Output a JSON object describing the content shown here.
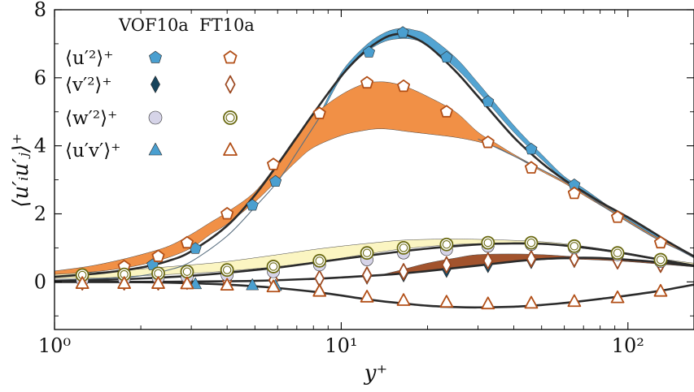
{
  "chart_data": {
    "type": "line",
    "xscale": "log",
    "xlim": [
      1,
      170
    ],
    "ylim": [
      -1.4,
      8
    ],
    "xlabel": "y⁺",
    "ylabel": "⟨u′ᵢu′ⱼ⟩⁺",
    "x_ticks": [
      {
        "value": 1,
        "label": "10⁰"
      },
      {
        "value": 10,
        "label": "10¹"
      },
      {
        "value": 100,
        "label": "10²"
      }
    ],
    "y_ticks": [
      {
        "value": 0,
        "label": "0"
      },
      {
        "value": 2,
        "label": "2"
      },
      {
        "value": 4,
        "label": "4"
      },
      {
        "value": 6,
        "label": "6"
      },
      {
        "value": 8,
        "label": "8"
      }
    ],
    "legend": {
      "placement": "top-left",
      "headers": [
        "VOF10a",
        "FT10a"
      ],
      "rows": [
        {
          "label": "⟨u′²⟩⁺",
          "vof_marker": "pentagon",
          "ft_marker": "pentagon"
        },
        {
          "label": "⟨v′²⟩⁺",
          "vof_marker": "diamond",
          "ft_marker": "diamond"
        },
        {
          "label": "⟨w′²⟩⁺",
          "vof_marker": "circle",
          "ft_marker": "circle"
        },
        {
          "label": "⟨u′v′⟩⁺",
          "vof_marker": "triangle",
          "ft_marker": "triangle"
        }
      ]
    },
    "colors": {
      "uu_vof": "#4a9fd0",
      "uu_ft": "#f08a3c",
      "uu_ft_marker": "#b24f17",
      "vv_vof": "#17445c",
      "vv_ft": "#9d4a22",
      "ww_vof": "#d6d4e8",
      "ww_ft": "#fbf4bf",
      "ww_ft_marker": "#6b6a12",
      "uv_vof": "#4a9fd0",
      "uv_ft": "#b24f17",
      "reference": "#2b2b2b",
      "thin_line": "#5a6f80"
    },
    "reference_curves": [
      {
        "id": "uu",
        "x": [
          1,
          1.3,
          1.6,
          2,
          2.5,
          3,
          4,
          5,
          6,
          7,
          8,
          10,
          12,
          14,
          15.5,
          17,
          20,
          25,
          30,
          40,
          50,
          60,
          70,
          80,
          100,
          120,
          140,
          170
        ],
        "y": [
          0.15,
          0.22,
          0.3,
          0.42,
          0.62,
          0.9,
          1.65,
          2.55,
          3.45,
          4.25,
          4.95,
          6.05,
          6.75,
          7.15,
          7.28,
          7.25,
          6.95,
          6.2,
          5.45,
          4.25,
          3.5,
          3.0,
          2.65,
          2.35,
          1.9,
          1.5,
          1.15,
          0.75
        ]
      },
      {
        "id": "vv",
        "x": [
          1,
          2,
          3,
          5,
          8,
          10,
          15,
          20,
          30,
          40,
          50,
          60,
          70,
          80,
          100,
          120,
          150,
          170
        ],
        "y": [
          0.0,
          0.0,
          0.01,
          0.03,
          0.09,
          0.13,
          0.22,
          0.32,
          0.48,
          0.6,
          0.67,
          0.7,
          0.71,
          0.7,
          0.65,
          0.6,
          0.52,
          0.47
        ]
      },
      {
        "id": "ww",
        "x": [
          1,
          1.5,
          2,
          3,
          4,
          6,
          8,
          10,
          15,
          20,
          30,
          40,
          50,
          60,
          80,
          100,
          130,
          170
        ],
        "y": [
          0.03,
          0.06,
          0.1,
          0.18,
          0.27,
          0.42,
          0.56,
          0.67,
          0.86,
          0.98,
          1.1,
          1.13,
          1.12,
          1.07,
          0.95,
          0.82,
          0.65,
          0.48
        ]
      },
      {
        "id": "uv",
        "x": [
          1,
          2,
          3,
          4,
          5,
          6,
          8,
          10,
          12,
          15,
          20,
          25,
          30,
          40,
          50,
          60,
          70,
          80,
          100,
          130,
          170
        ],
        "y": [
          0,
          -0.01,
          -0.04,
          -0.08,
          -0.13,
          -0.18,
          -0.29,
          -0.4,
          -0.5,
          -0.6,
          -0.7,
          -0.74,
          -0.75,
          -0.73,
          -0.68,
          -0.62,
          -0.56,
          -0.5,
          -0.4,
          -0.26,
          -0.08
        ]
      }
    ],
    "bands": [
      {
        "id": "uu-vof-band",
        "color": "uu_vof",
        "x": [
          8.5,
          10,
          12,
          14,
          16,
          18,
          20,
          25,
          30,
          40,
          50,
          60,
          70,
          90,
          110,
          130,
          150,
          170
        ],
        "lower": [
          4.9,
          6.0,
          6.7,
          7.05,
          7.15,
          7.12,
          6.95,
          6.3,
          5.6,
          4.4,
          3.6,
          3.0,
          2.65,
          2.05,
          1.6,
          1.25,
          0.95,
          0.7
        ],
        "upper": [
          5.0,
          6.15,
          6.9,
          7.3,
          7.45,
          7.4,
          7.25,
          6.6,
          5.85,
          4.6,
          3.75,
          3.1,
          2.75,
          2.1,
          1.65,
          1.3,
          1.0,
          0.75
        ]
      },
      {
        "id": "uu-ft-band",
        "color": "uu_ft",
        "x": [
          1,
          1.3,
          1.6,
          2,
          2.5,
          3,
          3.5,
          4,
          5,
          6,
          7,
          8,
          10,
          12,
          13.5,
          15,
          17,
          20,
          25,
          30,
          35,
          40,
          50,
          60,
          70,
          90,
          110,
          130,
          150,
          170
        ],
        "lower": [
          0.2,
          0.28,
          0.36,
          0.5,
          0.72,
          1.0,
          1.4,
          1.7,
          2.35,
          3.0,
          3.55,
          3.95,
          4.3,
          4.45,
          4.5,
          4.48,
          4.42,
          4.35,
          4.25,
          4.12,
          3.95,
          3.7,
          3.25,
          2.9,
          2.55,
          2.0,
          1.55,
          1.2,
          0.95,
          0.75
        ],
        "upper": [
          0.32,
          0.45,
          0.6,
          0.8,
          1.05,
          1.4,
          1.75,
          2.05,
          2.65,
          3.5,
          4.3,
          4.9,
          5.5,
          5.82,
          5.88,
          5.85,
          5.72,
          5.45,
          5.0,
          4.4,
          4.05,
          3.75,
          3.3,
          2.95,
          2.6,
          2.05,
          1.6,
          1.25,
          1.0,
          0.78
        ]
      },
      {
        "id": "ww-ft-band",
        "color": "ww_ft",
        "x": [
          1,
          1.5,
          2,
          3,
          4,
          6,
          8,
          10,
          13,
          16,
          20,
          25,
          30,
          40,
          50,
          60,
          80,
          100,
          130,
          170
        ],
        "lower": [
          0.1,
          0.12,
          0.18,
          0.25,
          0.32,
          0.45,
          0.58,
          0.7,
          0.85,
          0.96,
          1.04,
          1.1,
          1.12,
          1.12,
          1.1,
          1.05,
          0.92,
          0.8,
          0.63,
          0.5
        ],
        "upper": [
          0.22,
          0.3,
          0.38,
          0.5,
          0.6,
          0.8,
          0.95,
          1.05,
          1.15,
          1.22,
          1.25,
          1.26,
          1.25,
          1.22,
          1.18,
          1.12,
          0.98,
          0.85,
          0.68,
          0.55
        ]
      },
      {
        "id": "vv-ft-band",
        "color": "vv_ft",
        "x": [
          14,
          16,
          20,
          25,
          30,
          40,
          50,
          60,
          70,
          90,
          110,
          130,
          150,
          170
        ],
        "lower": [
          0.2,
          0.24,
          0.32,
          0.42,
          0.5,
          0.6,
          0.65,
          0.67,
          0.66,
          0.62,
          0.57,
          0.52,
          0.48,
          0.44
        ],
        "upper": [
          0.22,
          0.34,
          0.55,
          0.7,
          0.8,
          0.82,
          0.8,
          0.76,
          0.72,
          0.65,
          0.6,
          0.55,
          0.5,
          0.46
        ]
      }
    ],
    "thin_lines": [
      {
        "id": "uu-ft-thin",
        "x": [
          1,
          1.5,
          2,
          2.5,
          3,
          4,
          5,
          6,
          7,
          8.5
        ],
        "y": [
          0.05,
          0.1,
          0.18,
          0.35,
          0.6,
          1.35,
          2.2,
          2.95,
          3.8,
          4.9
        ]
      },
      {
        "id": "uu-ft-thin-right",
        "x": [
          30,
          40,
          50,
          60,
          70,
          90,
          110,
          130,
          150,
          170
        ],
        "y": [
          4.2,
          3.7,
          3.3,
          2.95,
          2.6,
          2.0,
          1.55,
          1.2,
          0.95,
          0.72
        ]
      }
    ],
    "series": [
      {
        "name": "⟨u′²⟩⁺ VOF10a",
        "marker": "pentagon",
        "filled": true,
        "color": "uu_vof",
        "x": [
          2.2,
          3.1,
          4.9,
          5.9,
          8.4,
          12.5,
          16.4,
          23.3,
          32.5,
          46,
          65,
          92,
          130
        ],
        "y": [
          0.5,
          0.98,
          2.25,
          2.95,
          4.95,
          6.75,
          7.33,
          6.6,
          5.3,
          3.9,
          2.85,
          1.9,
          1.15
        ]
      },
      {
        "name": "⟨u′²⟩⁺ FT10a",
        "marker": "pentagon",
        "filled": false,
        "color": "uu_ft_marker",
        "x": [
          1.25,
          1.75,
          2.3,
          2.9,
          4.0,
          5.8,
          8.4,
          12.3,
          16.5,
          23.3,
          32.5,
          46,
          65,
          92,
          130
        ],
        "y": [
          0.2,
          0.45,
          0.75,
          1.15,
          2.0,
          3.45,
          4.95,
          5.85,
          5.75,
          5.0,
          4.1,
          3.35,
          2.6,
          1.9,
          1.15
        ]
      },
      {
        "name": "⟨v′²⟩⁺ VOF10a",
        "marker": "diamond",
        "filled": true,
        "color": "vv_vof",
        "x": [
          1.25,
          1.75,
          2.3,
          2.9,
          4.0,
          5.8,
          8.4,
          12.3,
          16.5,
          23.3,
          32.5,
          46,
          65,
          92,
          130
        ],
        "y": [
          0.0,
          0.0,
          0.0,
          0.02,
          0.03,
          0.05,
          0.08,
          0.16,
          0.23,
          0.36,
          0.5,
          0.62,
          0.65,
          0.6,
          0.5
        ]
      },
      {
        "name": "⟨v′²⟩⁺ FT10a",
        "marker": "diamond",
        "filled": false,
        "color": "vv_ft",
        "x": [
          1.25,
          1.75,
          2.3,
          2.9,
          4.0,
          5.8,
          8.4,
          12.3,
          16.5,
          23.3,
          32.5,
          46,
          65,
          92,
          130
        ],
        "y": [
          0.0,
          0.0,
          0.0,
          0.02,
          0.03,
          0.05,
          0.1,
          0.2,
          0.3,
          0.5,
          0.62,
          0.68,
          0.68,
          0.62,
          0.52
        ]
      },
      {
        "name": "⟨w′²⟩⁺ VOF10a",
        "marker": "circle",
        "filled": true,
        "color": "ww_vof",
        "x": [
          1.25,
          1.75,
          2.3,
          2.9,
          4.0,
          5.8,
          8.4,
          12.3,
          16.5,
          23.3,
          32.5,
          46,
          65,
          92,
          130
        ],
        "y": [
          0.05,
          0.08,
          0.12,
          0.15,
          0.2,
          0.3,
          0.5,
          0.65,
          0.85,
          0.95,
          1.05,
          1.1,
          1.0,
          0.8,
          0.6
        ]
      },
      {
        "name": "⟨w′²⟩⁺ FT10a",
        "marker": "circle",
        "filled": false,
        "color": "ww_ft_marker",
        "x": [
          1.25,
          1.75,
          2.3,
          2.9,
          4.0,
          5.8,
          8.4,
          12.3,
          16.5,
          23.3,
          32.5,
          46,
          65,
          92,
          130
        ],
        "y": [
          0.2,
          0.22,
          0.25,
          0.3,
          0.35,
          0.45,
          0.62,
          0.85,
          1.0,
          1.1,
          1.15,
          1.15,
          1.05,
          0.85,
          0.65
        ]
      },
      {
        "name": "⟨u′v′⟩⁺ VOF10a",
        "marker": "triangle",
        "filled": true,
        "color": "uv_vof",
        "x": [
          1.25,
          1.75,
          2.3,
          3.1,
          4.9,
          5.9,
          8.4,
          12.3,
          16.5,
          23.3,
          32.5,
          46,
          65,
          92,
          130
        ],
        "y": [
          -0.05,
          -0.05,
          -0.05,
          -0.07,
          -0.1,
          -0.12,
          -0.25,
          -0.45,
          -0.55,
          -0.62,
          -0.65,
          -0.63,
          -0.58,
          -0.47,
          -0.28
        ]
      },
      {
        "name": "⟨u′v′⟩⁺ FT10a",
        "marker": "triangle",
        "filled": false,
        "color": "uv_ft",
        "x": [
          1.25,
          1.75,
          2.3,
          2.9,
          4.0,
          5.8,
          8.4,
          12.3,
          16.5,
          23.3,
          32.5,
          46,
          65,
          92,
          130
        ],
        "y": [
          -0.05,
          -0.05,
          -0.05,
          -0.06,
          -0.1,
          -0.15,
          -0.28,
          -0.45,
          -0.55,
          -0.6,
          -0.65,
          -0.63,
          -0.58,
          -0.47,
          -0.28
        ]
      }
    ]
  }
}
